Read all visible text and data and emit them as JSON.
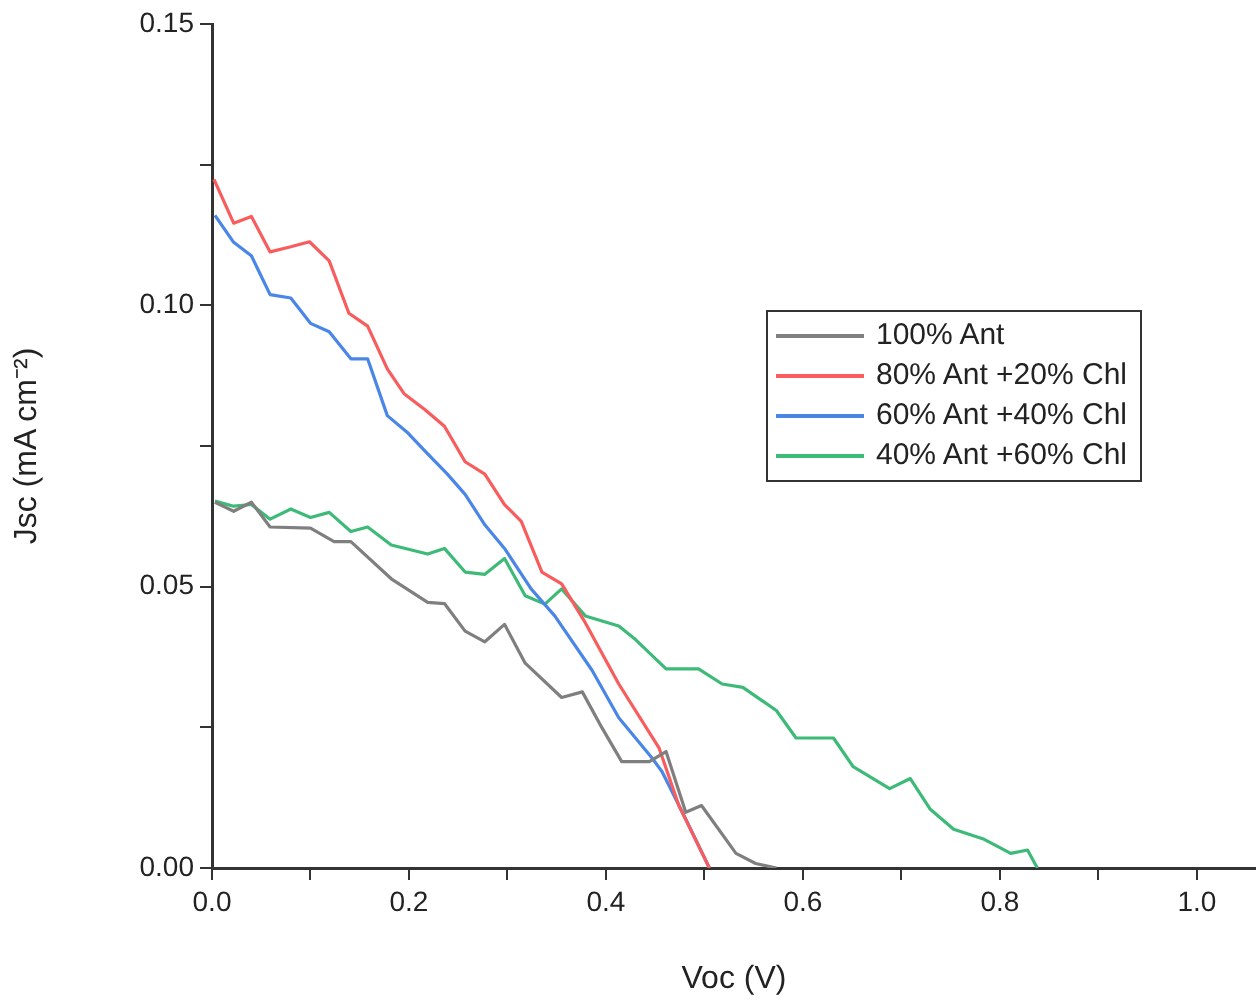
{
  "chart_data": {
    "type": "line",
    "xlabel": "Voc (V)",
    "ylabel": "Jsc (mA cm⁻²)",
    "xlim": [
      0,
      1.06
    ],
    "ylim": [
      0,
      0.15
    ],
    "xticks": [
      {
        "value": 0,
        "label": "0.0"
      },
      {
        "value": 0.1,
        "label": null
      },
      {
        "value": 0.2,
        "label": "0.2"
      },
      {
        "value": 0.3,
        "label": null
      },
      {
        "value": 0.4,
        "label": "0.4"
      },
      {
        "value": 0.5,
        "label": null
      },
      {
        "value": 0.6,
        "label": "0.6"
      },
      {
        "value": 0.7,
        "label": null
      },
      {
        "value": 0.8,
        "label": "0.8"
      },
      {
        "value": 0.9,
        "label": null
      },
      {
        "value": 1,
        "label": "1.0"
      }
    ],
    "yticks": [
      {
        "value": 0,
        "label": "0.00"
      },
      {
        "value": 0.025,
        "label": null
      },
      {
        "value": 0.05,
        "label": "0.05"
      },
      {
        "value": 0.075,
        "label": null
      },
      {
        "value": 0.1,
        "label": "0.10"
      },
      {
        "value": 0.125,
        "label": null
      },
      {
        "value": 0.15,
        "label": "0.15"
      }
    ],
    "grid": false,
    "legend": "top right",
    "marker": "none",
    "line_style": "solid",
    "series": [
      {
        "name": "100% Ant",
        "color": "#7f7f7f",
        "x": [
          0.003,
          0.022,
          0.04,
          0.059,
          0.1,
          0.124,
          0.141,
          0.182,
          0.219,
          0.236,
          0.257,
          0.277,
          0.297,
          0.318,
          0.355,
          0.376,
          0.396,
          0.416,
          0.444,
          0.461,
          0.481,
          0.497,
          0.532,
          0.552,
          0.573
        ],
        "values": [
          0.065,
          0.0634,
          0.065,
          0.0606,
          0.0604,
          0.058,
          0.058,
          0.0514,
          0.0472,
          0.047,
          0.0421,
          0.0402,
          0.0433,
          0.0364,
          0.0303,
          0.0313,
          0.0249,
          0.0189,
          0.0189,
          0.0207,
          0.0099,
          0.0111,
          0.0026,
          0.0008,
          0
        ]
      },
      {
        "name": "80% Ant +20% Chl",
        "color": "#f85c5c",
        "x": [
          0.002,
          0.022,
          0.04,
          0.059,
          0.08,
          0.099,
          0.119,
          0.139,
          0.158,
          0.178,
          0.195,
          0.216,
          0.236,
          0.257,
          0.277,
          0.297,
          0.314,
          0.335,
          0.355,
          0.379,
          0.413,
          0.454,
          0.474,
          0.505
        ],
        "values": [
          0.1224,
          0.1146,
          0.1158,
          0.1095,
          0.1104,
          0.1113,
          0.1079,
          0.0986,
          0.0963,
          0.0887,
          0.0843,
          0.0815,
          0.0785,
          0.0722,
          0.07,
          0.0646,
          0.0616,
          0.0526,
          0.0505,
          0.0436,
          0.0327,
          0.0213,
          0.0111,
          0
        ]
      },
      {
        "name": "60% Ant +40% Chl",
        "color": "#4a86e8",
        "x": [
          0.003,
          0.022,
          0.04,
          0.059,
          0.08,
          0.1,
          0.119,
          0.141,
          0.158,
          0.178,
          0.199,
          0.219,
          0.239,
          0.257,
          0.277,
          0.297,
          0.324,
          0.348,
          0.386,
          0.413,
          0.447,
          0.457,
          0.481,
          0.505
        ],
        "values": [
          0.116,
          0.1112,
          0.1088,
          0.1019,
          0.1013,
          0.0968,
          0.0953,
          0.0905,
          0.0905,
          0.0804,
          0.0773,
          0.0736,
          0.07,
          0.0664,
          0.061,
          0.0568,
          0.0496,
          0.0448,
          0.0351,
          0.0267,
          0.0195,
          0.0171,
          0.0087,
          0
        ]
      },
      {
        "name": "40% Ant +60% Chl",
        "color": "#3dba78",
        "x": [
          0.003,
          0.022,
          0.04,
          0.059,
          0.08,
          0.1,
          0.119,
          0.141,
          0.158,
          0.182,
          0.219,
          0.236,
          0.257,
          0.277,
          0.297,
          0.318,
          0.338,
          0.355,
          0.379,
          0.413,
          0.43,
          0.461,
          0.494,
          0.518,
          0.539,
          0.573,
          0.593,
          0.631,
          0.651,
          0.688,
          0.709,
          0.729,
          0.753,
          0.784,
          0.811,
          0.828,
          0.838
        ],
        "values": [
          0.0652,
          0.0643,
          0.0646,
          0.062,
          0.0638,
          0.0623,
          0.0632,
          0.0598,
          0.0606,
          0.0574,
          0.0558,
          0.0568,
          0.0526,
          0.0522,
          0.055,
          0.0484,
          0.0469,
          0.0496,
          0.0448,
          0.043,
          0.0406,
          0.0354,
          0.0354,
          0.0327,
          0.0321,
          0.028,
          0.0231,
          0.0231,
          0.018,
          0.0141,
          0.0159,
          0.0105,
          0.0069,
          0.0051,
          0.0026,
          0.0032,
          0
        ]
      }
    ]
  }
}
